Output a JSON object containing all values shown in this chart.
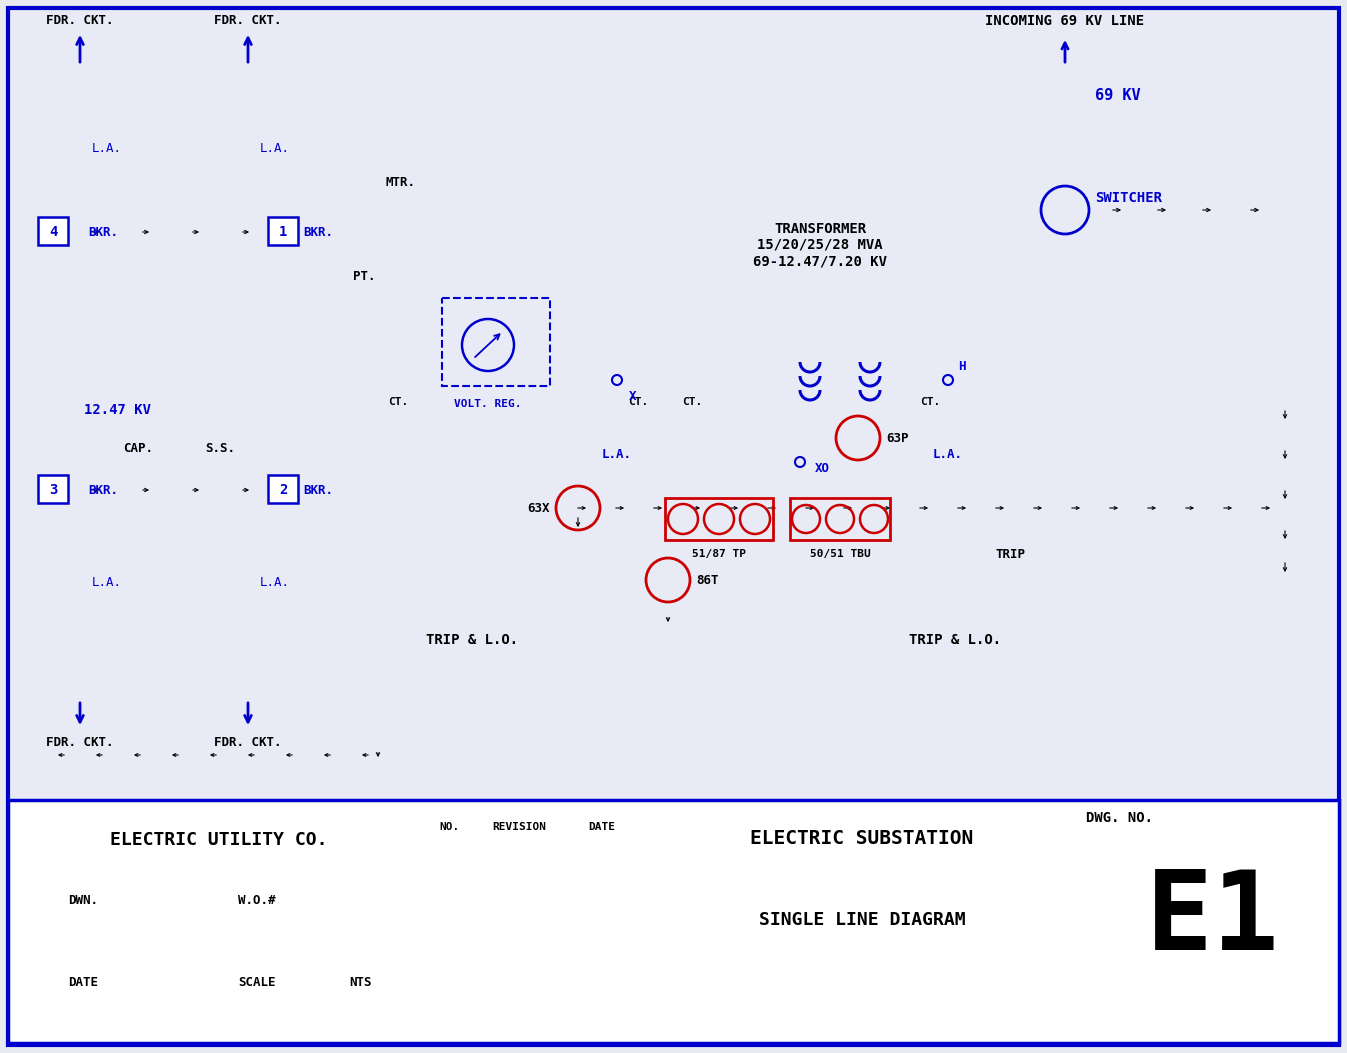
{
  "bg_color": "#e8eaf0",
  "diagram_bg": "#e8eaf6",
  "border_color": "#0000cc",
  "black": "#000000",
  "red": "#cc0000",
  "title_texts": {
    "company": "ELECTRIC UTILITY CO.",
    "dwn_label": "DWN.",
    "wo_label": "W.O.#",
    "date_label": "DATE",
    "scale_label": "SCALE",
    "scale_val": "NTS",
    "no_label": "NO.",
    "revision": "REVISION",
    "date_col": "DATE",
    "title1": "ELECTRIC SUBSTATION",
    "title2": "SINGLE LINE DIAGRAM",
    "dwg_no_label": "DWG. NO.",
    "dwg_no": "E1"
  },
  "annotations": {
    "incoming": "INCOMING 69 KV LINE",
    "switcher": "SWITCHER",
    "69kv": "69 KV",
    "transformer": "TRANSFORMER\n15/20/25/28 MVA\n69-12.47/7.20 KV",
    "12kv": "12.47 KV",
    "mtr": "MTR.",
    "pt": "PT.",
    "ct_label": "CT.",
    "volt_reg": "VOLT. REG.",
    "cap": "CAP.",
    "ss": "S.S.",
    "bkr_label": "BKR.",
    "la": "L.A.",
    "fdr_ckt": "FDR. CKT.",
    "x_label": "X",
    "xo_label": "XO",
    "h_label": "H",
    "63p": "63P",
    "63x": "63X",
    "86t": "86T",
    "5187tp": "51/87 TP",
    "5051tbu": "50/51 TBU",
    "trip_right": "TRIP",
    "trip_lo1": "TRIP & L.O.",
    "trip_lo2": "TRIP & L.O."
  }
}
